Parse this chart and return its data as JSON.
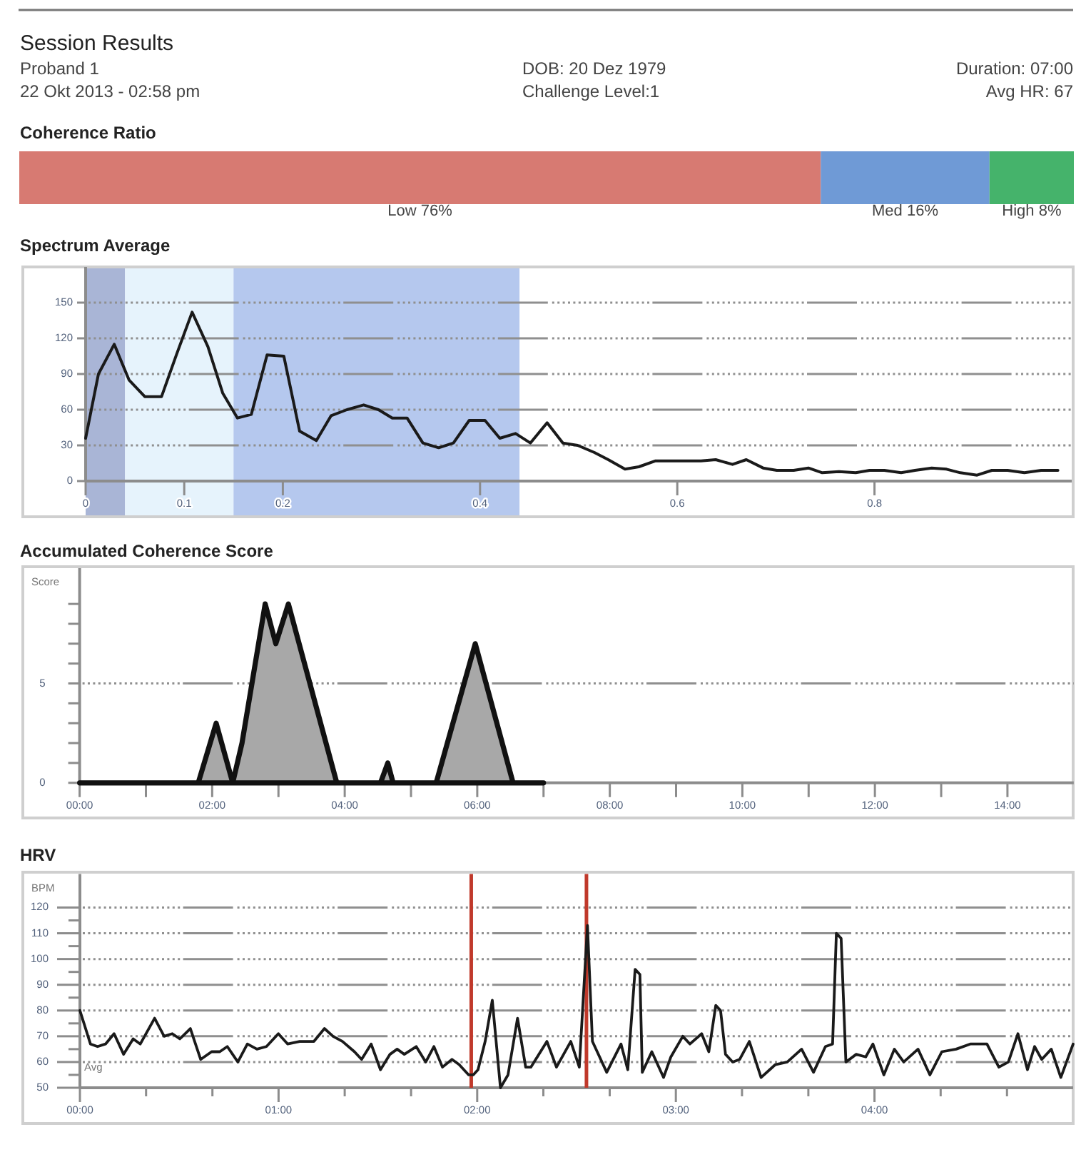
{
  "chart_data": [
    {
      "type": "other",
      "title": "Session Results",
      "annotations": [
        "Proband 1",
        "22 Okt 2013 - 02:58 pm",
        "DOB: 20 Dez 1979",
        "Challenge Level:1",
        "Duration: 07:00",
        "Avg HR: 67"
      ]
    },
    {
      "type": "bar",
      "title": "Coherence Ratio",
      "orientation": "horizontal",
      "stacked": true,
      "categories": [
        null
      ],
      "tick_labels": false,
      "series": [
        {
          "color": "#d77a72",
          "values": [
            76
          ],
          "value_labels": [
            "Low 76%"
          ]
        },
        {
          "color": "#6f9ad6",
          "values": [
            16
          ],
          "value_labels": [
            "Med 16%"
          ]
        },
        {
          "color": "#45b36b",
          "values": [
            8
          ],
          "value_labels": [
            "High 8%"
          ]
        }
      ]
    },
    {
      "type": "line",
      "title": "Spectrum Average",
      "color": "#1a1a1a",
      "x": [
        0,
        0.013,
        0.029,
        0.044,
        0.06,
        0.077,
        0.092,
        0.108,
        0.124,
        0.139,
        0.154,
        0.168,
        0.184,
        0.201,
        0.217,
        0.234,
        0.249,
        0.265,
        0.282,
        0.297,
        0.311,
        0.326,
        0.342,
        0.358,
        0.373,
        0.389,
        0.405,
        0.42,
        0.436,
        0.451,
        0.468,
        0.484,
        0.499,
        0.516,
        0.53,
        0.547,
        0.561,
        0.578,
        0.593,
        0.61,
        0.624,
        0.639,
        0.656,
        0.67,
        0.687,
        0.701,
        0.718,
        0.733,
        0.747,
        0.764,
        0.781,
        0.795,
        0.81,
        0.827,
        0.841,
        0.858,
        0.873,
        0.887,
        0.904,
        0.919,
        0.935,
        0.952,
        0.969,
        0.986
      ],
      "values": [
        36,
        90,
        115,
        85,
        71,
        71,
        106,
        142,
        113,
        74,
        53,
        56,
        106,
        105,
        42,
        34,
        55,
        60,
        64,
        60,
        53,
        53,
        32,
        28,
        32,
        51,
        51,
        36,
        40,
        32,
        49,
        32,
        30,
        24,
        18,
        10,
        12,
        17,
        17,
        17,
        17,
        18,
        14,
        18,
        11,
        9,
        9,
        11,
        7,
        8,
        7,
        9,
        9,
        7,
        9,
        11,
        10,
        7,
        5,
        9,
        9,
        7,
        9,
        9
      ],
      "xlim": [
        0,
        1
      ],
      "xticks": [
        0,
        0.1,
        0.2,
        0.4,
        0.6,
        0.8
      ],
      "ylim": [
        0,
        180
      ],
      "yticks": [
        0,
        30,
        60,
        90,
        120,
        150
      ],
      "grid": "y",
      "bands": [
        {
          "axis": "x",
          "from": 0,
          "to": 0.04,
          "color": "#a9b5d6"
        },
        {
          "axis": "x",
          "from": 0.04,
          "to": 0.15,
          "color": "#e6f3fc"
        },
        {
          "axis": "x",
          "from": 0.15,
          "to": 0.44,
          "color": "#b5c8ee"
        }
      ]
    },
    {
      "type": "area",
      "title": "Accumulated Coherence Score",
      "ylabel": "Score",
      "color": "#a8a8a8",
      "x": [
        0,
        1.79,
        2.06,
        2.31,
        2.45,
        2.8,
        2.96,
        3.15,
        3.88,
        4.54,
        4.65,
        4.73,
        5.38,
        5.97,
        6.54,
        7
      ],
      "values": [
        0,
        0,
        3,
        0,
        2,
        9,
        7,
        9,
        0,
        0,
        1,
        0,
        0,
        7,
        0,
        0
      ],
      "xlim": [
        0,
        15
      ],
      "xticks": [
        {
          "value": 0,
          "label": "00:00"
        },
        {
          "value": 1,
          "label": null
        },
        {
          "value": 2,
          "label": "02:00"
        },
        {
          "value": 3,
          "label": null
        },
        {
          "value": 4,
          "label": "04:00"
        },
        {
          "value": 5,
          "label": null
        },
        {
          "value": 6,
          "label": "06:00"
        },
        {
          "value": 7,
          "label": null
        },
        {
          "value": 8,
          "label": "08:00"
        },
        {
          "value": 9,
          "label": null
        },
        {
          "value": 10,
          "label": "10:00"
        },
        {
          "value": 11,
          "label": null
        },
        {
          "value": 12,
          "label": "12:00"
        },
        {
          "value": 13,
          "label": null
        },
        {
          "value": 14,
          "label": "14:00"
        }
      ],
      "ylim": [
        0,
        10.8
      ],
      "yticks": [
        0,
        {
          "value": 1,
          "label": null
        },
        {
          "value": 2,
          "label": null
        },
        {
          "value": 3,
          "label": null
        },
        {
          "value": 4,
          "label": null
        },
        5,
        {
          "value": 6,
          "label": null
        },
        {
          "value": 7,
          "label": null
        },
        {
          "value": 8,
          "label": null
        },
        {
          "value": 9,
          "label": null
        }
      ],
      "grid": "y"
    },
    {
      "type": "line",
      "title": "HRV",
      "ylabel": "BPM",
      "color": "#1a1a1a",
      "annotations": [
        "Avg"
      ],
      "x": [
        0,
        0.053,
        0.089,
        0.129,
        0.172,
        0.22,
        0.268,
        0.304,
        0.376,
        0.424,
        0.465,
        0.503,
        0.556,
        0.608,
        0.663,
        0.704,
        0.742,
        0.795,
        0.843,
        0.891,
        0.939,
        0.999,
        1.046,
        1.106,
        1.178,
        1.231,
        1.274,
        1.322,
        1.382,
        1.418,
        1.466,
        1.513,
        1.561,
        1.597,
        1.633,
        1.693,
        1.741,
        1.782,
        1.825,
        1.873,
        1.909,
        1.957,
        1.98,
        2.004,
        2.04,
        2.076,
        2.117,
        2.155,
        2.203,
        2.244,
        2.27,
        2.351,
        2.399,
        2.471,
        2.514,
        2.555,
        2.58,
        2.604,
        2.652,
        2.724,
        2.758,
        2.795,
        2.819,
        2.831,
        2.879,
        2.938,
        2.975,
        3.035,
        3.071,
        3.13,
        3.166,
        3.201,
        3.225,
        3.25,
        3.286,
        3.321,
        3.37,
        3.429,
        3.501,
        3.561,
        3.633,
        3.693,
        3.753,
        3.789,
        3.808,
        3.832,
        3.856,
        3.908,
        3.956,
        3.992,
        4.047,
        4.1,
        4.147,
        4.219,
        4.279,
        4.339,
        4.411,
        4.482,
        4.566,
        4.626,
        4.674,
        4.722,
        4.77,
        4.806,
        4.842,
        4.89,
        4.938,
        5
      ],
      "values": [
        80,
        67,
        66,
        67,
        71,
        63,
        69,
        67,
        77,
        70,
        71,
        69,
        73,
        61,
        64,
        64,
        66,
        60,
        67,
        65,
        66,
        71,
        67,
        68,
        68,
        73,
        70,
        68,
        64,
        61,
        67,
        57,
        63,
        65,
        63,
        66,
        60,
        66,
        58,
        61,
        59,
        55,
        55,
        57,
        68,
        84,
        50,
        55,
        77,
        58,
        58,
        68,
        58,
        68,
        58,
        113,
        68,
        64,
        56,
        67,
        57,
        96,
        94,
        56,
        64,
        54,
        62,
        70,
        67,
        71,
        64,
        82,
        80,
        63,
        60,
        61,
        68,
        54,
        59,
        60,
        65,
        56,
        66,
        67,
        110,
        108,
        60,
        63,
        62,
        67,
        55,
        65,
        60,
        65,
        55,
        64,
        65,
        67,
        67,
        58,
        60,
        71,
        57,
        66,
        61,
        65,
        54,
        67
      ],
      "xlim": [
        0,
        5
      ],
      "xticks": [
        {
          "value": 0,
          "label": "00:00"
        },
        {
          "value": 0.333,
          "label": null
        },
        {
          "value": 0.667,
          "label": null
        },
        {
          "value": 1,
          "label": "01:00"
        },
        {
          "value": 1.333,
          "label": null
        },
        {
          "value": 1.667,
          "label": null
        },
        {
          "value": 2,
          "label": "02:00"
        },
        {
          "value": 2.333,
          "label": null
        },
        {
          "value": 2.667,
          "label": null
        },
        {
          "value": 3,
          "label": "03:00"
        },
        {
          "value": 3.333,
          "label": null
        },
        {
          "value": 3.667,
          "label": null
        },
        {
          "value": 4,
          "label": "04:00"
        },
        {
          "value": 4.333,
          "label": null
        },
        {
          "value": 4.667,
          "label": null
        }
      ],
      "ylim": [
        50,
        133
      ],
      "yticks": [
        50,
        {
          "value": 55,
          "label": null
        },
        60,
        {
          "value": 65,
          "label": null
        },
        70,
        {
          "value": 75,
          "label": null
        },
        80,
        {
          "value": 85,
          "label": null
        },
        90,
        {
          "value": 95,
          "label": null
        },
        100,
        {
          "value": 105,
          "label": null
        },
        110,
        {
          "value": 115,
          "label": null
        },
        120
      ],
      "grid": "y",
      "ref_lines": [
        {
          "axis": "x",
          "value": 1.97,
          "color": "#c0392b"
        },
        {
          "axis": "x",
          "value": 2.55,
          "color": "#c0392b"
        }
      ]
    }
  ]
}
